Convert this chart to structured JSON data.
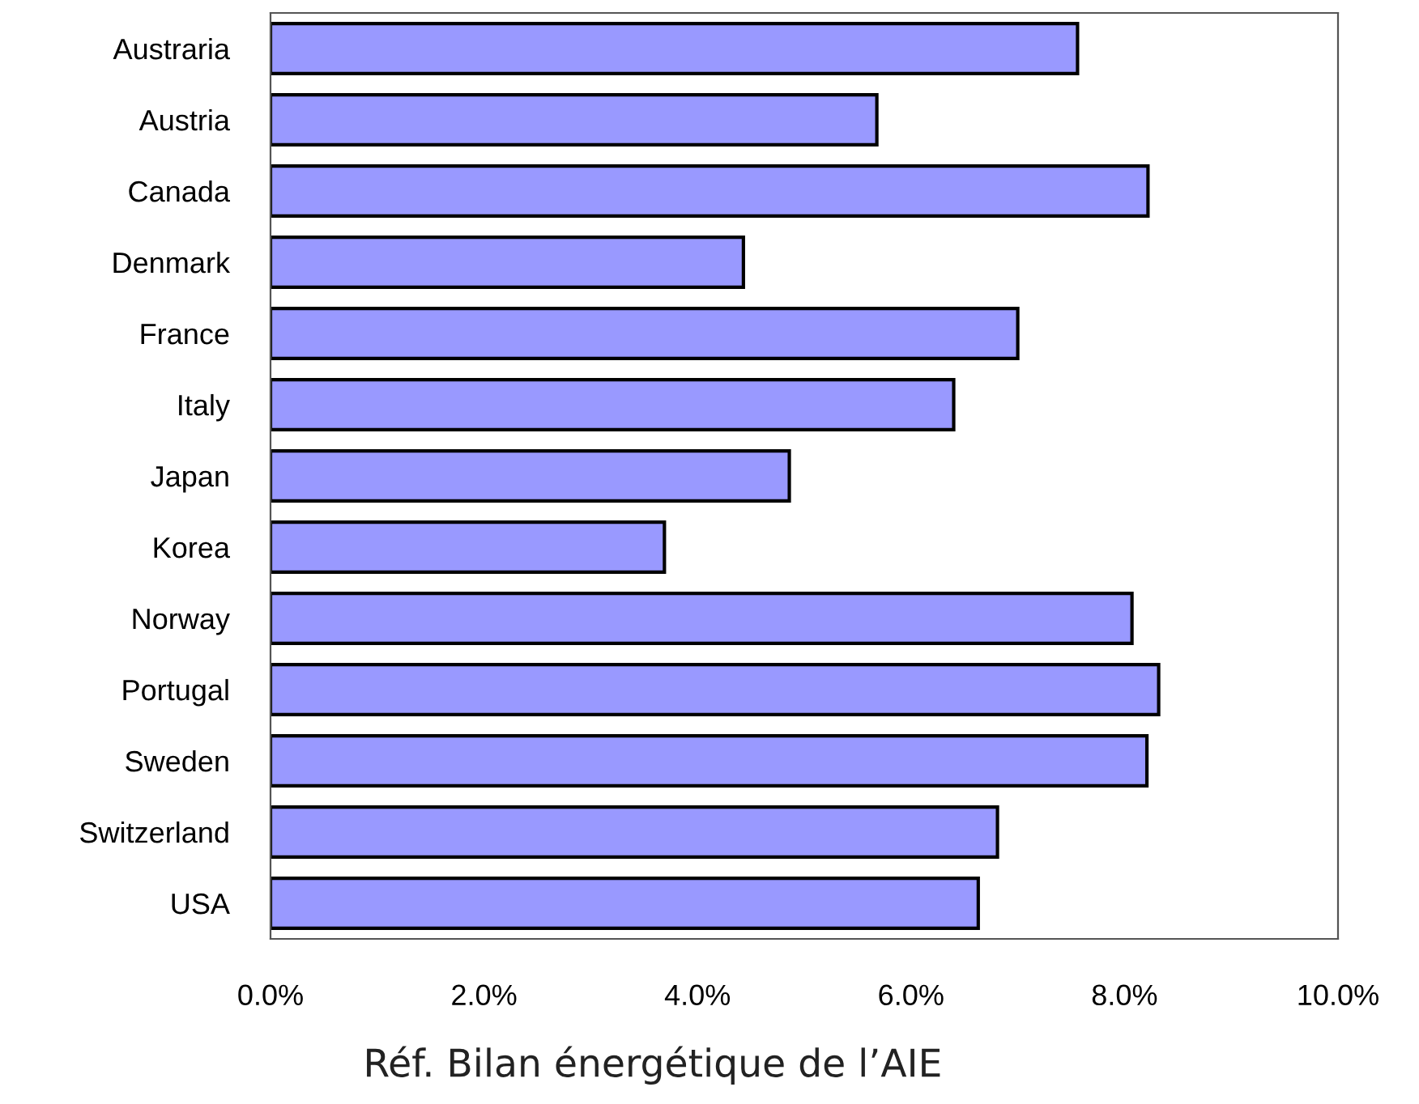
{
  "chart_data": {
    "type": "bar",
    "orientation": "horizontal",
    "categories": [
      "Austraria",
      "Austria",
      "Canada",
      "Denmark",
      "France",
      "Italy",
      "Japan",
      "Korea",
      "Norway",
      "Portugal",
      "Sweden",
      "Switzerland",
      "USA"
    ],
    "values": [
      7.56,
      5.68,
      8.22,
      4.43,
      7.0,
      6.4,
      4.86,
      3.69,
      8.07,
      8.32,
      8.21,
      6.81,
      6.63
    ],
    "color": "#9999ff",
    "xlim": [
      0,
      10
    ],
    "xticks": [
      {
        "value": 0,
        "label": "0.0%"
      },
      {
        "value": 2,
        "label": "2.0%"
      },
      {
        "value": 4,
        "label": "4.0%"
      },
      {
        "value": 6,
        "label": "6.0%"
      },
      {
        "value": 8,
        "label": "8.0%"
      },
      {
        "value": 10,
        "label": "10.0%"
      }
    ],
    "grid": false,
    "legend": false,
    "annotations": [
      "Réf. Bilan énergétique de l’AIE"
    ]
  }
}
